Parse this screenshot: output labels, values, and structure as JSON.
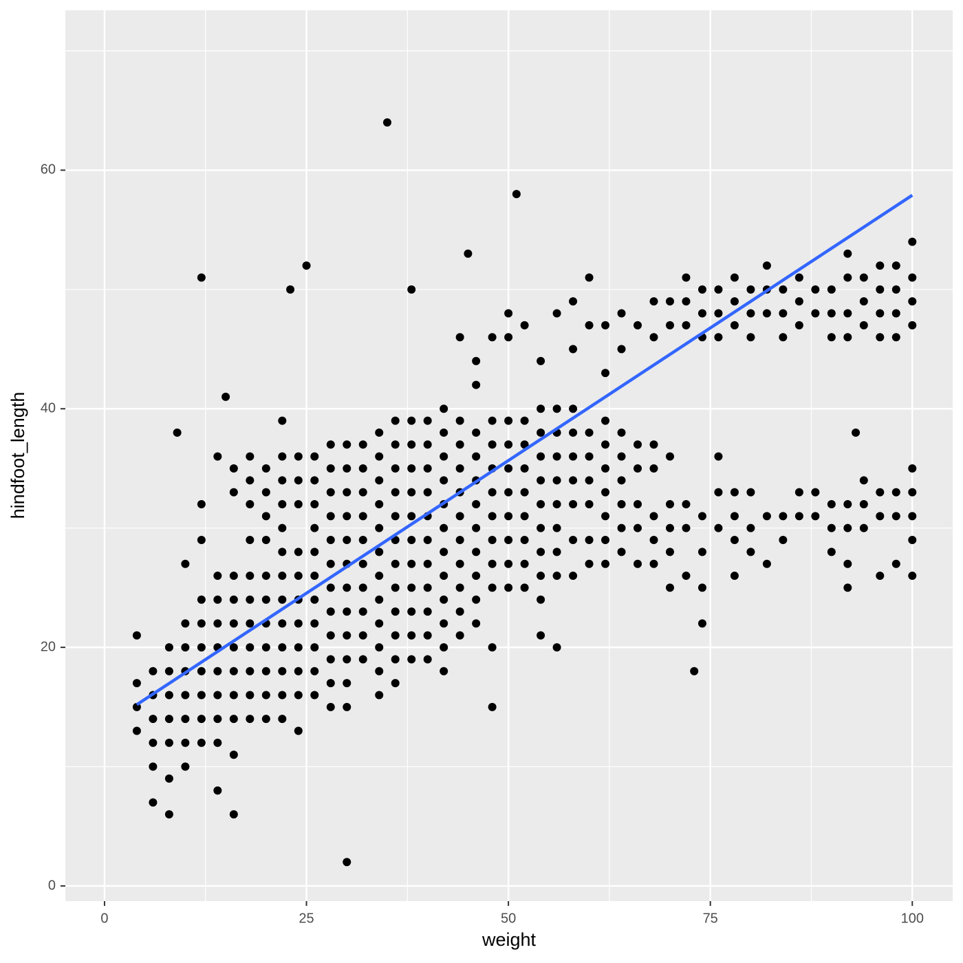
{
  "chart_data": {
    "type": "scatter",
    "x_label": "weight",
    "y_label": "hindfoot_length",
    "xlim": [
      -4.85,
      105
    ],
    "ylim": [
      -1.27,
      73.4
    ],
    "xticks": [
      0,
      25,
      50,
      75,
      100
    ],
    "yticks": [
      0,
      20,
      40,
      60
    ],
    "x_minor_ticks": [
      12.5,
      37.5,
      62.5,
      87.5
    ],
    "y_minor_ticks": [
      10,
      30,
      50,
      70
    ],
    "grid": true,
    "color": "#000000",
    "x": [
      4,
      4,
      4,
      4,
      6,
      6,
      6,
      6,
      6,
      6,
      8,
      8,
      8,
      8,
      8,
      8,
      8,
      10,
      10,
      10,
      10,
      10,
      10,
      10,
      10,
      12,
      12,
      12,
      12,
      12,
      12,
      12,
      12,
      12,
      12,
      14,
      14,
      14,
      14,
      14,
      14,
      14,
      14,
      14,
      14,
      16,
      16,
      16,
      16,
      16,
      16,
      16,
      16,
      16,
      16,
      16,
      18,
      18,
      18,
      18,
      18,
      18,
      18,
      18,
      18,
      18,
      18,
      20,
      20,
      20,
      20,
      20,
      20,
      20,
      20,
      20,
      20,
      20,
      22,
      22,
      22,
      22,
      22,
      22,
      22,
      22,
      22,
      22,
      22,
      22,
      22,
      24,
      24,
      24,
      24,
      24,
      24,
      24,
      24,
      24,
      24,
      24,
      26,
      26,
      26,
      26,
      26,
      26,
      26,
      26,
      26,
      26,
      26,
      28,
      28,
      28,
      28,
      28,
      28,
      28,
      28,
      28,
      28,
      28,
      28,
      30,
      30,
      30,
      30,
      30,
      30,
      30,
      30,
      30,
      30,
      30,
      30,
      30,
      32,
      32,
      32,
      32,
      32,
      32,
      32,
      32,
      32,
      32,
      34,
      34,
      34,
      34,
      34,
      34,
      34,
      34,
      34,
      34,
      34,
      34,
      36,
      36,
      36,
      36,
      36,
      36,
      36,
      36,
      36,
      36,
      36,
      36,
      38,
      38,
      38,
      38,
      38,
      38,
      38,
      38,
      38,
      38,
      38,
      38,
      40,
      40,
      40,
      40,
      40,
      40,
      40,
      40,
      40,
      40,
      40,
      42,
      42,
      42,
      42,
      42,
      42,
      42,
      42,
      42,
      42,
      42,
      42,
      44,
      44,
      44,
      44,
      44,
      44,
      44,
      44,
      44,
      44,
      44,
      46,
      46,
      46,
      46,
      46,
      46,
      46,
      46,
      46,
      46,
      46,
      48,
      48,
      48,
      48,
      48,
      48,
      48,
      48,
      48,
      48,
      48,
      50,
      50,
      50,
      50,
      50,
      50,
      50,
      50,
      50,
      50,
      52,
      52,
      52,
      52,
      52,
      52,
      52,
      52,
      52,
      54,
      54,
      54,
      54,
      54,
      54,
      54,
      54,
      54,
      54,
      54,
      56,
      56,
      56,
      56,
      56,
      56,
      56,
      56,
      56,
      56,
      58,
      58,
      58,
      58,
      58,
      58,
      58,
      58,
      58,
      60,
      60,
      60,
      60,
      60,
      60,
      60,
      60,
      62,
      62,
      62,
      62,
      62,
      62,
      62,
      62,
      62,
      64,
      64,
      64,
      64,
      64,
      64,
      64,
      64,
      66,
      66,
      66,
      66,
      66,
      66,
      68,
      68,
      68,
      68,
      68,
      68,
      68,
      70,
      70,
      70,
      70,
      70,
      70,
      70,
      72,
      72,
      72,
      72,
      72,
      72,
      74,
      74,
      74,
      74,
      74,
      74,
      74,
      76,
      76,
      76,
      76,
      76,
      76,
      78,
      78,
      78,
      78,
      78,
      78,
      78,
      80,
      80,
      80,
      80,
      80,
      80,
      82,
      82,
      82,
      82,
      82,
      84,
      84,
      84,
      84,
      84,
      86,
      86,
      86,
      86,
      86,
      88,
      88,
      88,
      88,
      90,
      90,
      90,
      90,
      90,
      90,
      92,
      92,
      92,
      92,
      92,
      92,
      92,
      92,
      94,
      94,
      94,
      94,
      94,
      94,
      96,
      96,
      96,
      96,
      96,
      96,
      96,
      98,
      98,
      98,
      98,
      98,
      98,
      98,
      100,
      100,
      100,
      100,
      100,
      100,
      100,
      100,
      100,
      35,
      51,
      45,
      25,
      23,
      15,
      9,
      73,
      93
    ],
    "values": [
      13,
      15,
      17,
      21,
      7,
      10,
      12,
      14,
      16,
      18,
      6,
      9,
      12,
      14,
      16,
      18,
      20,
      10,
      12,
      14,
      16,
      18,
      20,
      22,
      27,
      12,
      14,
      16,
      18,
      20,
      22,
      24,
      29,
      32,
      51,
      8,
      12,
      14,
      16,
      18,
      20,
      22,
      24,
      26,
      36,
      6,
      11,
      14,
      16,
      18,
      20,
      22,
      24,
      26,
      33,
      35,
      14,
      16,
      18,
      20,
      22,
      24,
      26,
      29,
      32,
      34,
      36,
      14,
      16,
      18,
      20,
      22,
      24,
      26,
      29,
      31,
      33,
      35,
      14,
      16,
      18,
      20,
      22,
      24,
      26,
      28,
      30,
      32,
      34,
      36,
      39,
      13,
      16,
      18,
      20,
      22,
      24,
      26,
      28,
      32,
      34,
      36,
      16,
      18,
      20,
      22,
      24,
      26,
      28,
      30,
      32,
      34,
      36,
      15,
      17,
      19,
      21,
      23,
      25,
      27,
      29,
      31,
      33,
      35,
      37,
      2,
      15,
      17,
      19,
      21,
      23,
      25,
      27,
      29,
      31,
      33,
      35,
      37,
      19,
      21,
      23,
      25,
      27,
      29,
      31,
      33,
      35,
      37,
      16,
      18,
      20,
      22,
      24,
      26,
      28,
      30,
      32,
      34,
      36,
      38,
      17,
      19,
      21,
      23,
      25,
      27,
      29,
      31,
      33,
      35,
      37,
      39,
      19,
      21,
      23,
      25,
      27,
      29,
      31,
      33,
      35,
      37,
      39,
      50,
      19,
      21,
      23,
      25,
      27,
      29,
      31,
      33,
      35,
      37,
      39,
      18,
      20,
      22,
      24,
      26,
      28,
      30,
      32,
      34,
      36,
      38,
      40,
      21,
      23,
      25,
      27,
      29,
      31,
      33,
      35,
      37,
      39,
      46,
      22,
      24,
      26,
      28,
      30,
      32,
      34,
      36,
      38,
      42,
      44,
      15,
      20,
      25,
      27,
      29,
      31,
      33,
      35,
      37,
      39,
      46,
      25,
      27,
      29,
      31,
      33,
      35,
      37,
      39,
      46,
      48,
      25,
      27,
      29,
      31,
      33,
      35,
      37,
      39,
      47,
      21,
      24,
      26,
      28,
      30,
      32,
      34,
      36,
      38,
      40,
      44,
      20,
      26,
      28,
      30,
      32,
      34,
      36,
      38,
      40,
      48,
      26,
      29,
      32,
      34,
      36,
      38,
      40,
      45,
      49,
      27,
      29,
      32,
      34,
      36,
      38,
      47,
      51,
      27,
      29,
      31,
      33,
      35,
      37,
      39,
      43,
      47,
      28,
      30,
      32,
      34,
      36,
      38,
      45,
      48,
      27,
      30,
      32,
      35,
      37,
      47,
      27,
      29,
      31,
      35,
      37,
      46,
      49,
      25,
      28,
      30,
      32,
      36,
      47,
      49,
      26,
      30,
      32,
      47,
      49,
      51,
      22,
      25,
      28,
      31,
      46,
      48,
      50,
      30,
      33,
      36,
      46,
      48,
      50,
      26,
      29,
      31,
      33,
      47,
      49,
      51,
      28,
      30,
      33,
      46,
      48,
      50,
      27,
      31,
      48,
      50,
      52,
      29,
      31,
      46,
      48,
      50,
      31,
      33,
      47,
      49,
      51,
      31,
      33,
      48,
      50,
      28,
      30,
      32,
      46,
      48,
      50,
      25,
      27,
      30,
      32,
      46,
      48,
      51,
      53,
      30,
      32,
      34,
      47,
      49,
      51,
      26,
      31,
      33,
      46,
      48,
      50,
      52,
      27,
      31,
      33,
      46,
      48,
      50,
      52,
      26,
      29,
      31,
      33,
      35,
      47,
      49,
      51,
      54,
      64,
      58,
      53,
      52,
      50,
      41,
      38,
      18,
      38
    ],
    "trend": {
      "color": "#3366ff",
      "x": [
        4,
        100
      ],
      "values": [
        15.2,
        57.9
      ]
    }
  }
}
